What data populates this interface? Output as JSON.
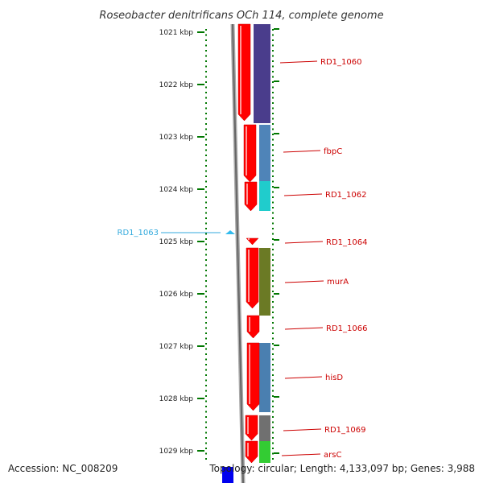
{
  "title": "Roseobacter denitrificans OCh 114, complete genome",
  "accession": "Accession: NC_008209",
  "topology": "Topology: circular; Length: 4,133,097 bp; Genes: 3,988",
  "scale_labels": [
    "1021 kbp",
    "1022 kbp",
    "1023 kbp",
    "1024 kbp",
    "1025 kbp",
    "1026 kbp",
    "1027 kbp",
    "1028 kbp",
    "1029 kbp"
  ],
  "colors": {
    "tick": "#007700",
    "gene_label": "#cc0000",
    "highlight_label": "#33aadd",
    "strand": "#ff0000",
    "backbone": "#777777"
  },
  "gene_labels": [
    "RD1_1060",
    "fbpC",
    "RD1_1062",
    "RD1_1064",
    "murA",
    "RD1_1066",
    "hisD",
    "RD1_1069",
    "arsC"
  ],
  "highlight_label": "RD1_1063",
  "cog_colors": [
    "#4a3d8c",
    "#4f84b8",
    "#20cccc",
    "#6b7a25",
    "#4a7fb0",
    "#707070",
    "#33cc33"
  ]
}
